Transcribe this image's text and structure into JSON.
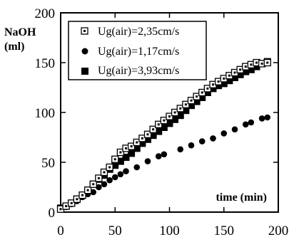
{
  "chart_data": {
    "type": "scatter",
    "title": "",
    "ylabel_line1": "NaOH",
    "ylabel_line2": "(ml)",
    "xlabel": "time (min)",
    "xlim": [
      0,
      200
    ],
    "ylim": [
      0,
      200
    ],
    "xticks": [
      "0",
      "50",
      "100",
      "150",
      "200"
    ],
    "yticks": [
      "0",
      "50",
      "100",
      "150",
      "200"
    ],
    "grid": false,
    "legend_position": "top-left",
    "series": [
      {
        "name": "Ug(air)=2,35cm/s",
        "marker": "open-square",
        "color": "#000000",
        "points": [
          [
            0,
            3
          ],
          [
            5,
            6
          ],
          [
            10,
            9
          ],
          [
            15,
            13
          ],
          [
            20,
            17
          ],
          [
            25,
            22
          ],
          [
            30,
            28
          ],
          [
            35,
            34
          ],
          [
            40,
            40
          ],
          [
            45,
            45
          ],
          [
            50,
            53
          ],
          [
            55,
            60
          ],
          [
            60,
            64
          ],
          [
            65,
            66
          ],
          [
            70,
            70
          ],
          [
            75,
            74
          ],
          [
            80,
            78
          ],
          [
            85,
            83
          ],
          [
            90,
            88
          ],
          [
            95,
            92
          ],
          [
            100,
            96
          ],
          [
            105,
            100
          ],
          [
            110,
            104
          ],
          [
            115,
            108
          ],
          [
            120,
            112
          ],
          [
            125,
            116
          ],
          [
            130,
            120
          ],
          [
            135,
            124
          ],
          [
            140,
            128
          ],
          [
            145,
            131
          ],
          [
            150,
            134
          ],
          [
            155,
            137
          ],
          [
            160,
            140
          ],
          [
            165,
            143
          ],
          [
            170,
            146
          ],
          [
            175,
            148
          ],
          [
            180,
            150
          ],
          [
            185,
            149
          ],
          [
            190,
            150
          ]
        ]
      },
      {
        "name": "Ug(air)=1,17cm/s",
        "marker": "filled-circle",
        "color": "#000000",
        "points": [
          [
            0,
            3
          ],
          [
            5,
            5
          ],
          [
            10,
            8
          ],
          [
            15,
            11
          ],
          [
            20,
            15
          ],
          [
            25,
            18
          ],
          [
            30,
            20
          ],
          [
            35,
            25
          ],
          [
            40,
            28
          ],
          [
            45,
            32
          ],
          [
            50,
            35
          ],
          [
            55,
            38
          ],
          [
            60,
            41
          ],
          [
            70,
            45
          ],
          [
            80,
            51
          ],
          [
            90,
            56
          ],
          [
            95,
            58
          ],
          [
            110,
            63
          ],
          [
            120,
            67
          ],
          [
            130,
            71
          ],
          [
            140,
            74
          ],
          [
            150,
            79
          ],
          [
            160,
            83
          ],
          [
            170,
            88
          ],
          [
            175,
            90
          ],
          [
            185,
            94
          ],
          [
            190,
            95
          ]
        ]
      },
      {
        "name": "Ug(air)=3,93cm/s",
        "marker": "filled-square",
        "color": "#000000",
        "points": [
          [
            0,
            4
          ],
          [
            5,
            6
          ],
          [
            10,
            9
          ],
          [
            15,
            13
          ],
          [
            20,
            17
          ],
          [
            25,
            22
          ],
          [
            30,
            28
          ],
          [
            35,
            33
          ],
          [
            40,
            37
          ],
          [
            45,
            43
          ],
          [
            50,
            47
          ],
          [
            55,
            51
          ],
          [
            60,
            55
          ],
          [
            65,
            59
          ],
          [
            70,
            64
          ],
          [
            75,
            69
          ],
          [
            80,
            73
          ],
          [
            85,
            77
          ],
          [
            90,
            81
          ],
          [
            95,
            85
          ],
          [
            100,
            89
          ],
          [
            105,
            93
          ],
          [
            110,
            97
          ],
          [
            115,
            102
          ],
          [
            120,
            107
          ],
          [
            125,
            111
          ],
          [
            130,
            115
          ],
          [
            135,
            120
          ],
          [
            140,
            124
          ],
          [
            145,
            127
          ],
          [
            150,
            129
          ],
          [
            155,
            132
          ],
          [
            160,
            135
          ],
          [
            165,
            138
          ],
          [
            170,
            141
          ],
          [
            175,
            143
          ],
          [
            180,
            146
          ],
          [
            185,
            149
          ],
          [
            190,
            151
          ]
        ]
      }
    ]
  }
}
